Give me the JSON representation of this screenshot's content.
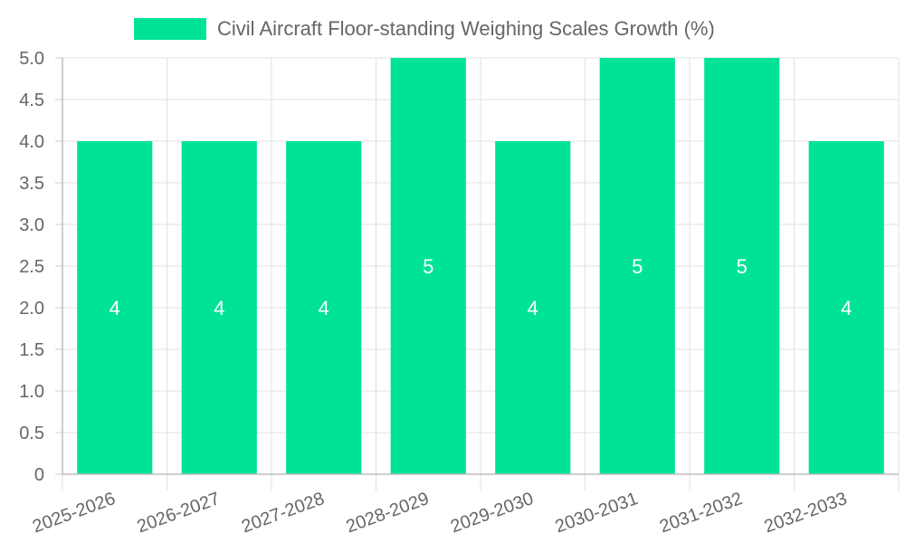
{
  "chart_data": {
    "type": "bar",
    "categories": [
      "2025-2026",
      "2026-2027",
      "2027-2028",
      "2028-2029",
      "2029-2030",
      "2030-2031",
      "2031-2032",
      "2032-2033"
    ],
    "series": [
      {
        "name": "Civil Aircraft Floor-standing Weighing Scales Growth (%)",
        "values": [
          4,
          4,
          4,
          5,
          4,
          5,
          5,
          4
        ],
        "color": "#00e396"
      }
    ],
    "ylim": [
      0,
      5
    ],
    "yticks": [
      "0",
      "0.5",
      "1.0",
      "1.5",
      "2.0",
      "2.5",
      "3.0",
      "3.5",
      "4.0",
      "4.5",
      "5.0"
    ],
    "data_labels": [
      "4",
      "4",
      "4",
      "5",
      "4",
      "5",
      "5",
      "4"
    ],
    "grid": true,
    "legend_position": "top",
    "title": "",
    "xlabel": "",
    "ylabel": ""
  }
}
